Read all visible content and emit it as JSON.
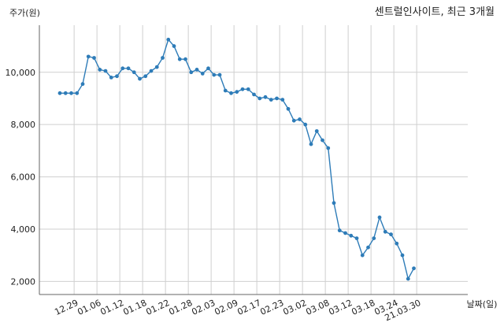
{
  "chart_data": {
    "type": "line",
    "title": "센트럴인사이트, 최근 3개월",
    "ylabel": "주가(원)",
    "xlabel": "날짜(일)",
    "ylim": [
      1500,
      11800
    ],
    "grid": "both",
    "yticks": [
      2000,
      4000,
      6000,
      8000,
      10000
    ],
    "ytick_labels": [
      "2,000",
      "4,000",
      "6,000",
      "8,000",
      "10,000"
    ],
    "xtick_labels": [
      "12.29",
      "01.06",
      "01.12",
      "01.18",
      "01.22",
      "01.28",
      "02.03",
      "02.09",
      "02.17",
      "02.23",
      "03.02",
      "03.08",
      "03.12",
      "03.18",
      "03.24",
      "21.03.30"
    ],
    "xtick_positions": [
      2.5,
      6.5,
      10.5,
      14.5,
      18.5,
      22.5,
      26.5,
      30.5,
      34.5,
      38.5,
      42.5,
      46.5,
      50.5,
      54.5,
      58.5,
      62.5
    ],
    "x_count": 63,
    "color": "#2e7cb8",
    "series": [
      {
        "values": [
          9200,
          9200,
          9200,
          9200,
          9550,
          10600,
          10550,
          10100,
          10050,
          9800,
          9850,
          10150,
          10150,
          10000,
          9750,
          9850,
          10050,
          10200,
          10550,
          11250,
          11000,
          10500,
          10500,
          10000,
          10100,
          9950,
          10150,
          9900,
          9900,
          9300,
          9200,
          9250,
          9350,
          9350,
          9150,
          9000,
          9050,
          8950,
          9000,
          8950,
          8600,
          8150,
          8200,
          8000,
          7250,
          7750,
          7400,
          7100,
          5000,
          3950,
          3850,
          3750,
          3650,
          3000,
          3300,
          3650,
          4450,
          3900,
          3800,
          3450,
          3000,
          2100,
          2500
        ]
      }
    ]
  }
}
